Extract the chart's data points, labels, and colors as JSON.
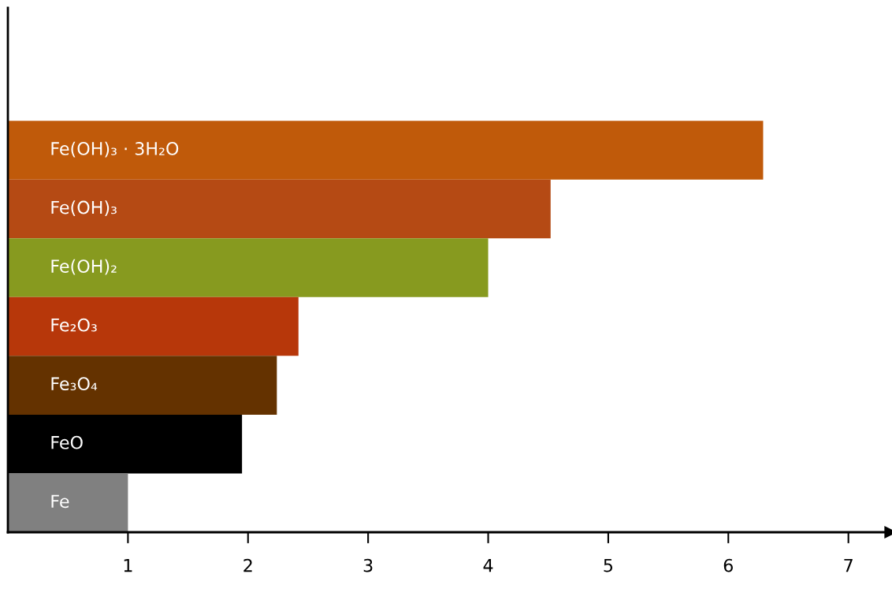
{
  "chart_data": {
    "type": "bar",
    "orientation": "horizontal",
    "categories": [
      "Fe(OH)₃ · 3H₂O",
      "Fe(OH)₃",
      "Fe(OH)₂",
      "Fe₂O₃",
      "Fe₃O₄",
      "FeO",
      "Fe"
    ],
    "values": [
      6.29,
      4.52,
      4.0,
      2.42,
      2.24,
      1.95,
      1.0
    ],
    "colors": [
      "#c05a0a",
      "#b54a14",
      "#879a1f",
      "#b7370a",
      "#643200",
      "#000000",
      "#808080"
    ],
    "xlim": [
      0,
      7.35
    ],
    "xticks": [
      1,
      2,
      3,
      4,
      5,
      6,
      7
    ],
    "grid": false
  }
}
